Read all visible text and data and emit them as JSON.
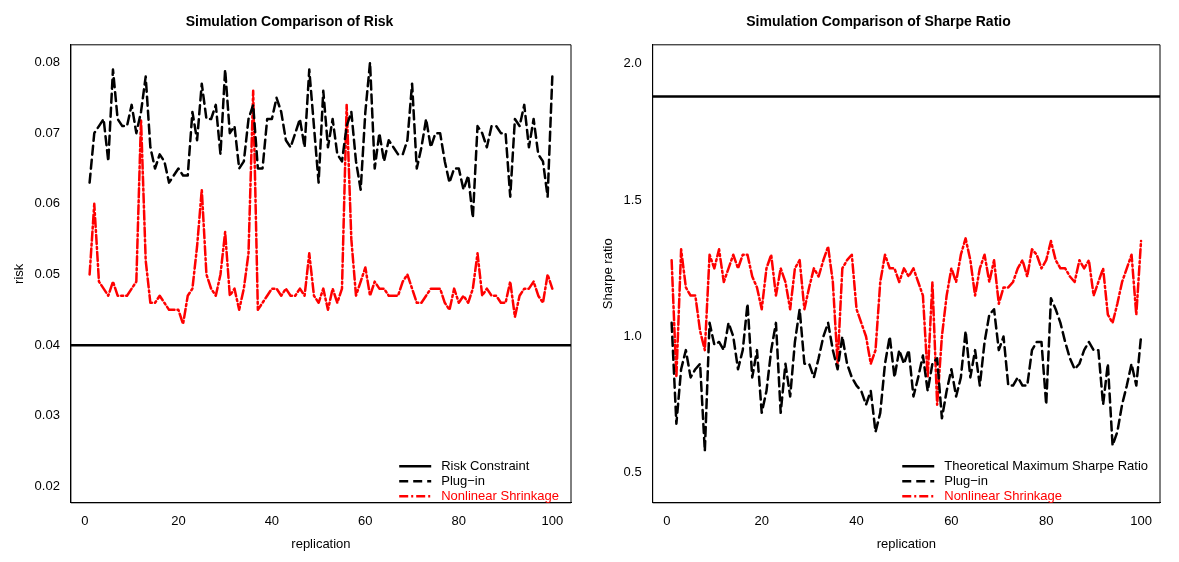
{
  "chart_data": [
    {
      "type": "line",
      "title": "Simulation Comparison of Risk",
      "xlabel": "replication",
      "ylabel": "risk",
      "xlim": [
        -3,
        104
      ],
      "xticks": [
        0,
        20,
        40,
        60,
        80,
        100
      ],
      "ylim": [
        0.0177,
        0.0825
      ],
      "yticks": [
        0.02,
        0.03,
        0.04,
        0.05,
        0.06,
        0.07,
        0.08
      ],
      "legend": "bottom right",
      "grid": false,
      "marker": "none",
      "x": [
        1,
        2,
        3,
        4,
        5,
        6,
        7,
        8,
        9,
        10,
        11,
        12,
        13,
        14,
        15,
        16,
        17,
        18,
        19,
        20,
        21,
        22,
        23,
        24,
        25,
        26,
        27,
        28,
        29,
        30,
        31,
        32,
        33,
        34,
        35,
        36,
        37,
        38,
        39,
        40,
        41,
        42,
        43,
        44,
        45,
        46,
        47,
        48,
        49,
        50,
        51,
        52,
        53,
        54,
        55,
        56,
        57,
        58,
        59,
        60,
        61,
        62,
        63,
        64,
        65,
        66,
        67,
        68,
        69,
        70,
        71,
        72,
        73,
        74,
        75,
        76,
        77,
        78,
        79,
        80,
        81,
        82,
        83,
        84,
        85,
        86,
        87,
        88,
        89,
        90,
        91,
        92,
        93,
        94,
        95,
        96,
        97,
        98,
        99,
        100
      ],
      "ref_lines": [
        {
          "axis": "y",
          "value": 0.04,
          "label": "Risk Constraint",
          "color": "#000000",
          "line_style": "solid"
        }
      ],
      "series": [
        {
          "name": "Plug−in",
          "color": "#000000",
          "line_style": "dashed",
          "values": [
            0.063,
            0.07,
            0.071,
            0.072,
            0.066,
            0.079,
            0.072,
            0.071,
            0.071,
            0.074,
            0.07,
            0.073,
            0.078,
            0.068,
            0.065,
            0.067,
            0.066,
            0.063,
            0.064,
            0.065,
            0.064,
            0.064,
            0.073,
            0.069,
            0.077,
            0.072,
            0.072,
            0.074,
            0.067,
            0.079,
            0.07,
            0.071,
            0.065,
            0.066,
            0.072,
            0.074,
            0.065,
            0.065,
            0.072,
            0.072,
            0.075,
            0.073,
            0.069,
            0.068,
            0.07,
            0.072,
            0.068,
            0.079,
            0.071,
            0.063,
            0.076,
            0.068,
            0.072,
            0.067,
            0.066,
            0.071,
            0.073,
            0.066,
            0.062,
            0.073,
            0.08,
            0.065,
            0.07,
            0.066,
            0.069,
            0.068,
            0.067,
            0.067,
            0.069,
            0.077,
            0.065,
            0.068,
            0.072,
            0.068,
            0.07,
            0.07,
            0.066,
            0.063,
            0.065,
            0.065,
            0.062,
            0.064,
            0.058,
            0.071,
            0.07,
            0.068,
            0.071,
            0.071,
            0.07,
            0.07,
            0.061,
            0.072,
            0.071,
            0.074,
            0.068,
            0.072,
            0.067,
            0.066,
            0.061,
            0.078
          ]
        },
        {
          "name": "Nonlinear Shrinkage",
          "color": "#ff0000",
          "line_style": "dotted",
          "values": [
            0.05,
            0.06,
            0.049,
            0.048,
            0.047,
            0.049,
            0.047,
            0.047,
            0.047,
            0.048,
            0.049,
            0.072,
            0.052,
            0.046,
            0.046,
            0.047,
            0.046,
            0.045,
            0.045,
            0.045,
            0.043,
            0.047,
            0.048,
            0.054,
            0.062,
            0.05,
            0.048,
            0.047,
            0.05,
            0.056,
            0.047,
            0.048,
            0.045,
            0.048,
            0.053,
            0.076,
            0.045,
            0.046,
            0.047,
            0.048,
            0.048,
            0.047,
            0.048,
            0.047,
            0.047,
            0.048,
            0.047,
            0.053,
            0.047,
            0.046,
            0.048,
            0.045,
            0.048,
            0.046,
            0.048,
            0.074,
            0.055,
            0.047,
            0.049,
            0.051,
            0.047,
            0.049,
            0.048,
            0.048,
            0.047,
            0.047,
            0.047,
            0.049,
            0.05,
            0.048,
            0.046,
            0.046,
            0.047,
            0.048,
            0.048,
            0.048,
            0.046,
            0.045,
            0.048,
            0.046,
            0.047,
            0.046,
            0.048,
            0.053,
            0.047,
            0.048,
            0.047,
            0.047,
            0.046,
            0.046,
            0.049,
            0.044,
            0.047,
            0.048,
            0.048,
            0.049,
            0.047,
            0.046,
            0.05,
            0.048
          ]
        }
      ]
    },
    {
      "type": "line",
      "title": "Simulation Comparison of Sharpe Ratio",
      "xlabel": "replication",
      "ylabel": "Sharpe ratio",
      "xlim": [
        -3,
        104
      ],
      "xticks": [
        0,
        20,
        40,
        60,
        80,
        100
      ],
      "ylim": [
        0.39,
        2.07
      ],
      "yticks": [
        0.5,
        {
          "value": 1,
          "label": "1.0"
        },
        1.5,
        {
          "value": 2,
          "label": "2.0"
        }
      ],
      "legend": "bottom right",
      "grid": false,
      "marker": "none",
      "x": [
        1,
        2,
        3,
        4,
        5,
        6,
        7,
        8,
        9,
        10,
        11,
        12,
        13,
        14,
        15,
        16,
        17,
        18,
        19,
        20,
        21,
        22,
        23,
        24,
        25,
        26,
        27,
        28,
        29,
        30,
        31,
        32,
        33,
        34,
        35,
        36,
        37,
        38,
        39,
        40,
        41,
        42,
        43,
        44,
        45,
        46,
        47,
        48,
        49,
        50,
        51,
        52,
        53,
        54,
        55,
        56,
        57,
        58,
        59,
        60,
        61,
        62,
        63,
        64,
        65,
        66,
        67,
        68,
        69,
        70,
        71,
        72,
        73,
        74,
        75,
        76,
        77,
        78,
        79,
        80,
        81,
        82,
        83,
        84,
        85,
        86,
        87,
        88,
        89,
        90,
        91,
        92,
        93,
        94,
        95,
        96,
        97,
        98,
        99,
        100
      ],
      "ref_lines": [
        {
          "axis": "y",
          "value": 1.88,
          "label": "Theoretical Maximum Sharpe Ratio",
          "color": "#000000",
          "line_style": "solid"
        }
      ],
      "series": [
        {
          "name": "Plug−in",
          "color": "#000000",
          "line_style": "dashed",
          "values": [
            1.05,
            0.68,
            0.88,
            0.95,
            0.85,
            0.88,
            0.9,
            0.58,
            1.05,
            0.97,
            0.98,
            0.95,
            1.05,
            1.0,
            0.88,
            0.95,
            1.12,
            0.85,
            0.95,
            0.72,
            0.8,
            0.95,
            1.05,
            0.72,
            0.9,
            0.78,
            0.98,
            1.1,
            0.9,
            0.9,
            0.85,
            0.92,
            1.0,
            1.05,
            0.95,
            0.88,
            1.0,
            0.9,
            0.85,
            0.82,
            0.8,
            0.75,
            0.8,
            0.65,
            0.72,
            0.9,
            1.0,
            0.85,
            0.95,
            0.9,
            0.95,
            0.78,
            0.85,
            0.93,
            0.8,
            0.9,
            0.92,
            0.7,
            0.8,
            0.88,
            0.78,
            0.85,
            1.02,
            0.85,
            0.95,
            0.82,
            0.98,
            1.08,
            1.1,
            0.95,
            1.0,
            0.82,
            0.82,
            0.85,
            0.82,
            0.82,
            0.95,
            0.98,
            0.98,
            0.75,
            1.14,
            1.1,
            1.05,
            0.98,
            0.92,
            0.88,
            0.9,
            0.95,
            0.98,
            0.95,
            0.95,
            0.75,
            0.9,
            0.6,
            0.65,
            0.75,
            0.82,
            0.9,
            0.82,
            1.0
          ]
        },
        {
          "name": "Nonlinear Shrinkage",
          "color": "#ff0000",
          "line_style": "dotted",
          "values": [
            1.28,
            0.85,
            1.32,
            1.18,
            1.15,
            1.15,
            1.02,
            0.95,
            1.3,
            1.25,
            1.32,
            1.2,
            1.25,
            1.3,
            1.25,
            1.3,
            1.3,
            1.22,
            1.18,
            1.1,
            1.25,
            1.3,
            1.15,
            1.25,
            1.2,
            1.1,
            1.25,
            1.28,
            1.1,
            1.18,
            1.25,
            1.22,
            1.28,
            1.33,
            1.2,
            0.9,
            1.25,
            1.28,
            1.3,
            1.1,
            1.05,
            1.0,
            0.9,
            0.95,
            1.2,
            1.3,
            1.25,
            1.25,
            1.2,
            1.25,
            1.22,
            1.25,
            1.2,
            1.15,
            0.85,
            1.2,
            0.75,
            1.0,
            1.15,
            1.25,
            1.2,
            1.3,
            1.36,
            1.28,
            1.15,
            1.25,
            1.3,
            1.2,
            1.28,
            1.12,
            1.18,
            1.18,
            1.2,
            1.25,
            1.28,
            1.22,
            1.32,
            1.3,
            1.25,
            1.28,
            1.35,
            1.28,
            1.25,
            1.25,
            1.22,
            1.2,
            1.28,
            1.25,
            1.28,
            1.15,
            1.2,
            1.25,
            1.08,
            1.05,
            1.12,
            1.2,
            1.25,
            1.3,
            1.08,
            1.35
          ]
        }
      ]
    }
  ]
}
